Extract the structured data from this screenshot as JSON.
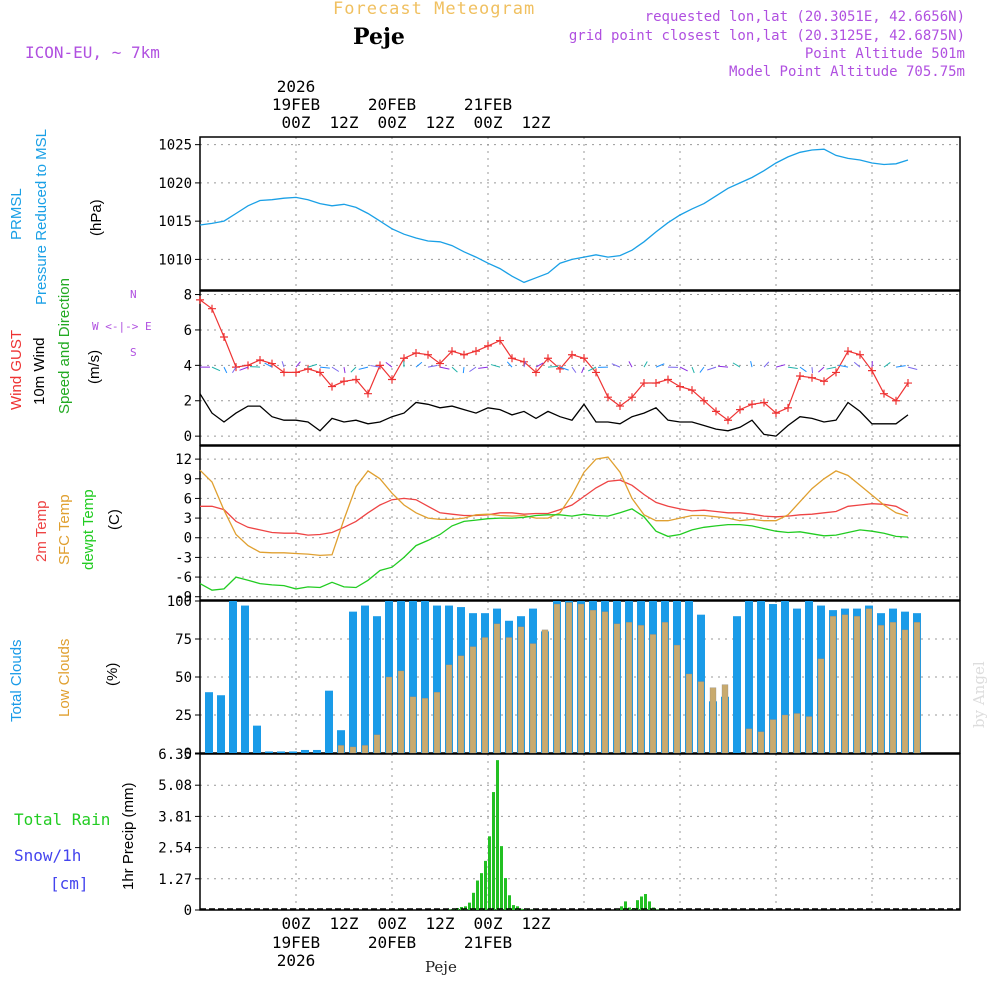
{
  "header": {
    "title": "Forecast Meteogram",
    "location": "Peje",
    "model": "ICON-EU, ~ 7km",
    "requested": "requested lon,lat (20.3051E, 42.6656N)",
    "gridpoint": "grid point closest lon,lat (20.3125E, 42.6875N)",
    "point_altitude": "Point Altitude 501m",
    "model_altitude": "Model Point Altitude 705.75m",
    "credit": "by Angel",
    "footer_location": "Peje"
  },
  "time_axis": {
    "year": "2026",
    "dates": [
      "19FEB",
      "20FEB",
      "21FEB"
    ],
    "ticks": [
      "00Z",
      "12Z",
      "00Z",
      "12Z",
      "00Z",
      "12Z"
    ]
  },
  "panel_labels": {
    "pressure": [
      "PRMSL",
      "Pressure Reduced to MSL",
      "(hPa)"
    ],
    "wind": [
      "Wind GUST",
      "10m Wind",
      "Speed and Direction",
      "(m/s)"
    ],
    "compass": [
      "N",
      "S",
      "W <-|-> E"
    ],
    "temp": [
      "2m Temp",
      "SFC Temp",
      "dewpt Temp",
      "(C)"
    ],
    "clouds": [
      "Total Clouds",
      "Low Clouds",
      "(%)"
    ],
    "precip": [
      "Total  Rain",
      "Snow/1h",
      "[cm]",
      "1hr Precip (mm)"
    ]
  },
  "colors": {
    "pressure": "#1aa0e6",
    "gust": "#ee3333",
    "wind": "#000000",
    "temp2m": "#ee4444",
    "sfc": "#e0a030",
    "dewpt": "#22cc22",
    "total_clouds": "#1a9be8",
    "low_clouds": "#c8aa6e",
    "rain": "#22c022",
    "title": "#f0c060",
    "meta": "#b050e0"
  },
  "chart_data": [
    {
      "type": "line",
      "title": "PRMSL Pressure Reduced to MSL",
      "ylabel": "hPa",
      "x_unit": "hours from 18FEB 18Z",
      "ylim": [
        1006,
        1026
      ],
      "yticks": [
        1010,
        1015,
        1020,
        1025
      ],
      "x": [
        0,
        3,
        6,
        9,
        12,
        15,
        18,
        21,
        24,
        27,
        30,
        33,
        36,
        39,
        42,
        45,
        48,
        51,
        54,
        57,
        60,
        63,
        66,
        69,
        72,
        75,
        78,
        81,
        84,
        87,
        90,
        93,
        96,
        99,
        102,
        105,
        108,
        111,
        114,
        117,
        120,
        123,
        126,
        129,
        132,
        135,
        138,
        141,
        144,
        147,
        150,
        153,
        156,
        159,
        162,
        165,
        168,
        171,
        174,
        177
      ],
      "values": [
        1014.5,
        1014.7,
        1015,
        1016,
        1017,
        1017.7,
        1017.8,
        1018,
        1018.1,
        1017.8,
        1017.3,
        1017,
        1017.2,
        1016.8,
        1016,
        1015,
        1014,
        1013.3,
        1012.8,
        1012.4,
        1012.3,
        1011.8,
        1011,
        1010.3,
        1009.5,
        1008.8,
        1007.8,
        1007,
        1007.6,
        1008.2,
        1009.5,
        1010,
        1010.3,
        1010.6,
        1010.3,
        1010.5,
        1011.2,
        1012.3,
        1013.6,
        1014.8,
        1015.8,
        1016.6,
        1017.3,
        1018.3,
        1019.3,
        1020,
        1020.7,
        1021.6,
        1022.6,
        1023.4,
        1024,
        1024.3,
        1024.4,
        1023.6,
        1023.2,
        1023,
        1022.6,
        1022.4,
        1022.5,
        1023
      ]
    },
    {
      "type": "line",
      "title": "Wind GUST / 10m Wind Speed and Direction",
      "ylabel": "m/s",
      "x_unit": "hours from 18FEB 18Z",
      "ylim": [
        -0.5,
        8.2
      ],
      "yticks": [
        0,
        2,
        4,
        6,
        8
      ],
      "x": [
        0,
        3,
        6,
        9,
        12,
        15,
        18,
        21,
        24,
        27,
        30,
        33,
        36,
        39,
        42,
        45,
        48,
        51,
        54,
        57,
        60,
        63,
        66,
        69,
        72,
        75,
        78,
        81,
        84,
        87,
        90,
        93,
        96,
        99,
        102,
        105,
        108,
        111,
        114,
        117,
        120,
        123,
        126,
        129,
        132,
        135,
        138,
        141,
        144,
        147,
        150,
        153,
        156,
        159,
        162,
        165,
        168,
        171,
        174,
        177
      ],
      "series": [
        {
          "name": "Wind GUST",
          "values": [
            7.7,
            7.2,
            5.6,
            3.9,
            4.0,
            4.3,
            4.1,
            3.6,
            3.6,
            3.8,
            3.6,
            2.8,
            3.1,
            3.2,
            2.4,
            4.0,
            3.2,
            4.4,
            4.7,
            4.6,
            4.1,
            4.8,
            4.6,
            4.8,
            5.1,
            5.4,
            4.4,
            4.2,
            3.6,
            4.4,
            3.8,
            4.6,
            4.4,
            3.6,
            2.2,
            1.7,
            2.2,
            3.0,
            3.0,
            3.2,
            2.8,
            2.6,
            2.0,
            1.4,
            0.9,
            1.5,
            1.8,
            1.9,
            1.3,
            1.6,
            3.4,
            3.3,
            3.1,
            3.6,
            4.8,
            4.6,
            3.7,
            2.4,
            2.0,
            3.0
          ]
        },
        {
          "name": "10m Wind",
          "values": [
            2.4,
            1.3,
            0.8,
            1.3,
            1.7,
            1.7,
            1.1,
            0.9,
            0.9,
            0.8,
            0.3,
            1.0,
            0.8,
            0.9,
            0.7,
            0.8,
            1.1,
            1.3,
            1.9,
            1.8,
            1.6,
            1.7,
            1.5,
            1.3,
            1.6,
            1.5,
            1.2,
            1.4,
            1.0,
            1.4,
            1.1,
            0.9,
            1.8,
            0.8,
            0.8,
            0.7,
            1.1,
            1.3,
            1.6,
            0.9,
            0.8,
            0.8,
            0.6,
            0.4,
            0.3,
            0.5,
            0.9,
            0.1,
            0.0,
            0.6,
            1.1,
            1.0,
            0.8,
            0.9,
            1.9,
            1.4,
            0.7,
            0.7,
            0.7,
            1.2
          ]
        }
      ]
    },
    {
      "type": "line",
      "title": "2m Temp / SFC Temp / dewpt Temp",
      "ylabel": "C",
      "x_unit": "hours from 18FEB 18Z",
      "ylim": [
        -9.5,
        14
      ],
      "yticks": [
        -9,
        -6,
        -3,
        0,
        3,
        6,
        9,
        12
      ],
      "x": [
        0,
        3,
        6,
        9,
        12,
        15,
        18,
        21,
        24,
        27,
        30,
        33,
        36,
        39,
        42,
        45,
        48,
        51,
        54,
        57,
        60,
        63,
        66,
        69,
        72,
        75,
        78,
        81,
        84,
        87,
        90,
        93,
        96,
        99,
        102,
        105,
        108,
        111,
        114,
        117,
        120,
        123,
        126,
        129,
        132,
        135,
        138,
        141,
        144,
        147,
        150,
        153,
        156,
        159,
        162,
        165,
        168,
        171,
        174,
        177
      ],
      "series": [
        {
          "name": "2m Temp",
          "values": [
            4.8,
            4.8,
            4.3,
            2.5,
            1.6,
            1.2,
            0.8,
            0.7,
            0.7,
            0.4,
            0.5,
            0.8,
            1.6,
            2.5,
            3.8,
            5.0,
            5.8,
            6.0,
            5.8,
            4.8,
            3.8,
            3.6,
            3.4,
            3.4,
            3.5,
            3.8,
            3.8,
            3.6,
            3.7,
            3.7,
            4.3,
            5.0,
            6.3,
            7.6,
            8.6,
            8.8,
            8.0,
            6.6,
            5.4,
            4.8,
            4.4,
            4.1,
            4.2,
            4.0,
            3.8,
            3.8,
            3.6,
            3.3,
            3.2,
            3.3,
            3.5,
            3.6,
            3.8,
            4.0,
            4.8,
            5.0,
            5.2,
            5.1,
            4.8,
            3.8
          ]
        },
        {
          "name": "SFC Temp",
          "values": [
            10.3,
            8.5,
            4.2,
            0.5,
            -1.2,
            -2.2,
            -2.3,
            -2.3,
            -2.4,
            -2.5,
            -2.7,
            -2.6,
            2.8,
            7.8,
            10.2,
            9.0,
            6.8,
            5.0,
            3.8,
            3.0,
            2.8,
            2.8,
            3.0,
            3.5,
            3.6,
            3.4,
            3.3,
            3.4,
            3.0,
            3.0,
            3.8,
            6.5,
            10.0,
            12.0,
            12.3,
            10.0,
            6.0,
            3.5,
            2.6,
            2.6,
            3.0,
            3.4,
            3.4,
            3.2,
            3.0,
            2.6,
            2.8,
            2.6,
            2.6,
            3.5,
            5.5,
            7.5,
            9.0,
            10.2,
            9.5,
            8.0,
            6.5,
            5.0,
            3.8,
            3.3
          ]
        },
        {
          "name": "dewpt Temp",
          "values": [
            -7.0,
            -8.0,
            -7.8,
            -6.0,
            -6.5,
            -7.0,
            -7.2,
            -7.3,
            -7.8,
            -7.5,
            -7.6,
            -6.8,
            -7.5,
            -7.6,
            -6.5,
            -5.0,
            -4.5,
            -3.0,
            -1.2,
            -0.4,
            0.5,
            1.8,
            2.5,
            2.7,
            2.9,
            3.0,
            3.0,
            3.1,
            3.4,
            3.5,
            3.5,
            3.3,
            3.6,
            3.4,
            3.3,
            3.8,
            4.4,
            3.2,
            1.0,
            0.2,
            0.5,
            1.2,
            1.6,
            1.8,
            2.0,
            2.0,
            1.8,
            1.4,
            1.0,
            0.8,
            0.9,
            0.6,
            0.3,
            0.4,
            0.8,
            1.2,
            1.0,
            0.7,
            0.2,
            0.1
          ]
        }
      ]
    },
    {
      "type": "bar",
      "title": "Total Clouds / Low Clouds",
      "ylabel": "%",
      "x_unit": "hours from 18FEB 18Z",
      "ylim": [
        0,
        100
      ],
      "yticks": [
        0,
        25,
        50,
        75,
        100
      ],
      "x": [
        0,
        3,
        6,
        9,
        12,
        15,
        18,
        21,
        24,
        27,
        30,
        33,
        36,
        39,
        42,
        45,
        48,
        51,
        54,
        57,
        60,
        63,
        66,
        69,
        72,
        75,
        78,
        81,
        84,
        87,
        90,
        93,
        96,
        99,
        102,
        105,
        108,
        111,
        114,
        117,
        120,
        123,
        126,
        129,
        132,
        135,
        138,
        141,
        144,
        147,
        150,
        153,
        156,
        159,
        162,
        165,
        168,
        171,
        174,
        177
      ],
      "series": [
        {
          "name": "Total Clouds",
          "values": [
            40,
            38,
            100,
            97,
            18,
            1,
            1,
            1,
            2,
            2,
            41,
            15,
            93,
            97,
            90,
            100,
            100,
            100,
            100,
            97,
            97,
            96,
            92,
            92,
            95,
            87,
            90,
            95,
            80,
            100,
            100,
            100,
            100,
            100,
            100,
            100,
            100,
            100,
            100,
            100,
            100,
            91,
            34,
            37,
            90,
            100,
            100,
            98,
            100,
            95,
            100,
            97,
            94,
            95,
            95,
            97,
            92,
            95,
            93,
            92
          ]
        },
        {
          "name": "Low Clouds",
          "values": [
            0,
            0,
            0,
            0,
            0,
            0,
            0,
            0,
            0,
            0,
            0,
            5,
            4,
            5,
            12,
            50,
            54,
            37,
            36,
            40,
            58,
            64,
            70,
            76,
            85,
            76,
            83,
            72,
            81,
            98,
            99,
            98,
            94,
            93,
            85,
            86,
            84,
            78,
            86,
            71,
            52,
            47,
            43,
            45,
            0,
            16,
            14,
            22,
            25,
            26,
            24,
            62,
            90,
            91,
            90,
            95,
            84,
            86,
            81,
            86
          ]
        }
      ]
    },
    {
      "type": "bar",
      "title": "1hr Precip",
      "ylabel": "1hr Precip (mm)",
      "x_unit": "hours from 18FEB 18Z",
      "ylim": [
        0,
        6.35
      ],
      "yticks": [
        0,
        1.27,
        2.54,
        3.81,
        5.08,
        6.35
      ],
      "x": [
        62,
        63,
        64,
        65,
        66,
        67,
        68,
        69,
        70,
        71,
        72,
        73,
        74,
        75,
        76,
        77,
        78,
        79,
        80,
        81,
        82,
        83,
        84,
        85,
        86,
        87,
        104,
        105,
        106,
        107,
        108,
        109,
        110,
        111,
        112,
        113,
        114
      ],
      "values": [
        0.02,
        0.05,
        0.08,
        0.12,
        0.15,
        0.3,
        0.7,
        1.2,
        1.5,
        2.0,
        3.0,
        4.8,
        6.1,
        2.6,
        1.3,
        0.6,
        0.2,
        0.15,
        0.05,
        0.02,
        0.01,
        0.01,
        0.0,
        0.0,
        0.0,
        0.0,
        0.05,
        0.15,
        0.35,
        0.1,
        0.08,
        0.4,
        0.55,
        0.65,
        0.35,
        0.1,
        0.02
      ]
    }
  ]
}
